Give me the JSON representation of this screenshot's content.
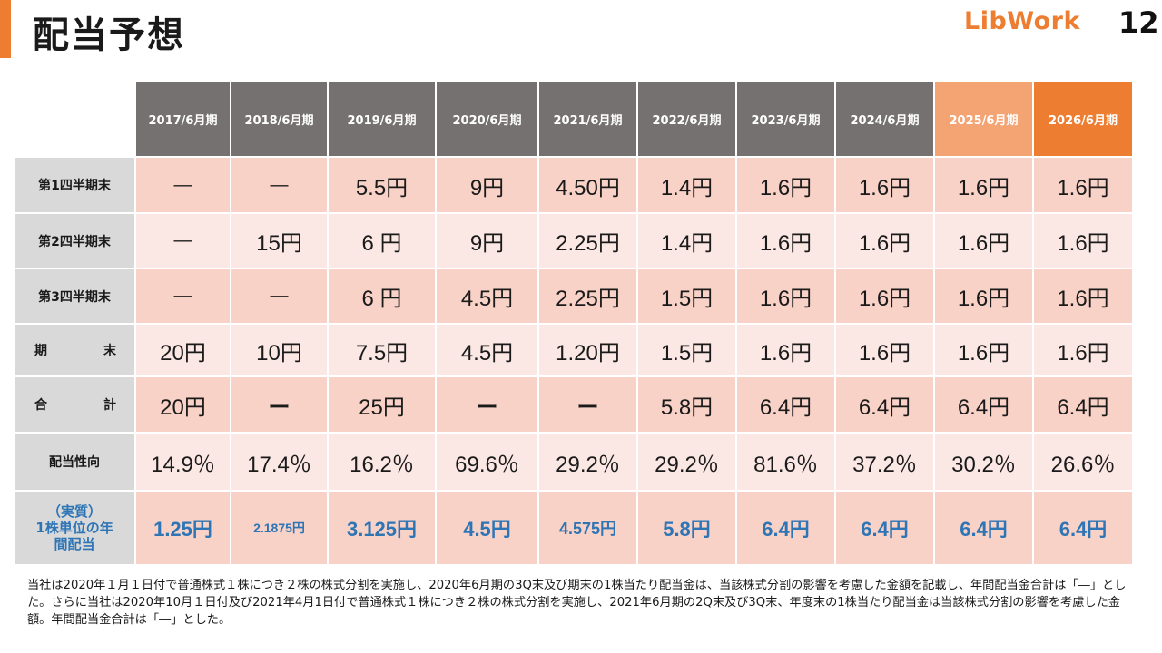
{
  "header": {
    "title": "配当予想",
    "logo": "LibWork",
    "page_number": "12"
  },
  "colors": {
    "accent": "#ed7d31",
    "header_gray": "#767171",
    "highlight_light": "#f4a373",
    "highlight_strong": "#ed7d31",
    "row_pink": "#f8d1c7",
    "row_light": "#fbe8e4",
    "blue_text": "#2e75b6"
  },
  "table": {
    "years": [
      "2017/6月期",
      "2018/6月期",
      "2019/6月期",
      "2020/6月期",
      "2021/6月期",
      "2022/6月期",
      "2023/6月期",
      "2024/6月期",
      "2025/6月期",
      "2026/6月期"
    ],
    "rows": [
      {
        "label": "第1四半期末",
        "values": [
          "―",
          "―",
          "5.5円",
          "9円",
          "4.50円",
          "1.4円",
          "1.6円",
          "1.6円",
          "1.6円",
          "1.6円"
        ]
      },
      {
        "label": "第2四半期末",
        "values": [
          "―",
          "15円",
          "6 円",
          "9円",
          "2.25円",
          "1.4円",
          "1.6円",
          "1.6円",
          "1.6円",
          "1.6円"
        ]
      },
      {
        "label": "第3四半期末",
        "values": [
          "―",
          "―",
          "6 円",
          "4.5円",
          "2.25円",
          "1.5円",
          "1.6円",
          "1.6円",
          "1.6円",
          "1.6円"
        ]
      },
      {
        "label_a": "期",
        "label_b": "末",
        "values": [
          "20円",
          "10円",
          "7.5円",
          "4.5円",
          "1.20円",
          "1.5円",
          "1.6円",
          "1.6円",
          "1.6円",
          "1.6円"
        ]
      },
      {
        "label_a": "合",
        "label_b": "計",
        "values": [
          "20円",
          "ー",
          "25円",
          "ー",
          "ー",
          "5.8円",
          "6.4円",
          "6.4円",
          "6.4円",
          "6.4円"
        ]
      },
      {
        "label": "配当性向",
        "values": [
          "14.9％",
          "17.4％",
          "16.2％",
          "69.6％",
          "29.2％",
          "29.2％",
          "81.6％",
          "37.2％",
          "30.2％",
          "26.6％"
        ]
      },
      {
        "label_lines": [
          "（実質）",
          "1株単位の年",
          "間配当"
        ],
        "values": [
          "1.25円",
          "2.1875円",
          "3.125円",
          "4.5円",
          "4.575円",
          "5.8円",
          "6.4円",
          "6.4円",
          "6.4円",
          "6.4円"
        ]
      }
    ]
  },
  "footnote": "当社は2020年１月１日付で普通株式１株につき２株の株式分割を実施し、2020年6月期の3Q末及び期末の1株当たり配当金は、当該株式分割の影響を考慮した金額を記載し、年間配当金合計は「―」とした。さらに当社は2020年10月１日付及び2021年4月1日付で普通株式１株につき２株の株式分割を実施し、2021年6月期の2Q末及び3Q末、年度末の1株当たり配当金は当該株式分割の影響を考慮した金額。年間配当金合計は「―」とした。"
}
